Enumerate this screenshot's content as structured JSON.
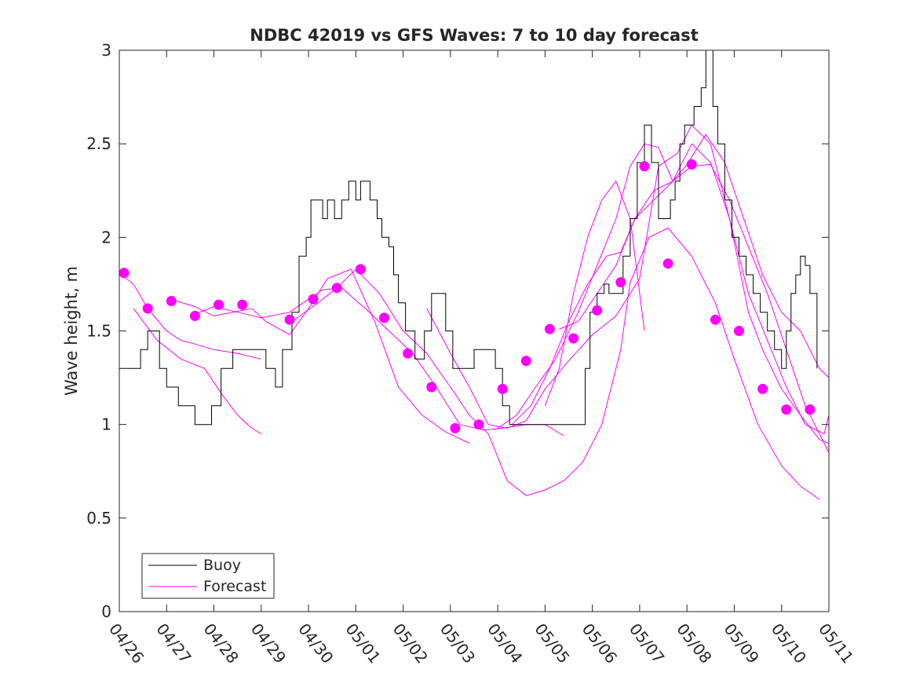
{
  "chart_data": {
    "type": "line",
    "title": "NDBC 42019 vs GFS Waves: 7 to 10 day forecast",
    "xlabel": "",
    "ylabel": "Wave height, m",
    "xlim": [
      0,
      15
    ],
    "ylim": [
      0,
      3
    ],
    "x_ticks": [
      0,
      1,
      2,
      3,
      4,
      5,
      6,
      7,
      8,
      9,
      10,
      11,
      12,
      13,
      14,
      15
    ],
    "x_tick_labels": [
      "04/26",
      "04/27",
      "04/28",
      "04/29",
      "04/30",
      "05/01",
      "05/02",
      "05/03",
      "05/04",
      "05/05",
      "05/06",
      "05/07",
      "05/08",
      "05/09",
      "05/10",
      "05/11"
    ],
    "y_ticks": [
      0,
      0.5,
      1,
      1.5,
      2,
      2.5,
      3
    ],
    "y_tick_labels": [
      "0",
      "0.5",
      "1",
      "1.5",
      "2",
      "2.5",
      "3"
    ],
    "grid": false,
    "legend": {
      "placement": "bottom-left",
      "entries": [
        "Buoy",
        "Forecast"
      ]
    },
    "colors": {
      "buoy": "#000000",
      "forecast": "#ff00ff",
      "axes": "#262626"
    },
    "buoy": {
      "name": "Buoy",
      "x": [
        0.0,
        0.25,
        0.45,
        0.6,
        0.85,
        1.0,
        1.1,
        1.25,
        1.45,
        1.6,
        1.75,
        1.95,
        2.15,
        2.3,
        2.4,
        2.55,
        2.75,
        2.95,
        3.1,
        3.3,
        3.45,
        3.65,
        3.8,
        3.95,
        4.05,
        4.15,
        4.3,
        4.4,
        4.55,
        4.7,
        4.85,
        5.0,
        5.1,
        5.3,
        5.45,
        5.55,
        5.7,
        5.8,
        5.9,
        6.05,
        6.25,
        6.45,
        6.6,
        6.75,
        6.9,
        7.05,
        7.2,
        7.35,
        7.5,
        7.65,
        7.75,
        7.95,
        8.1,
        8.25,
        8.45,
        8.65,
        8.8,
        8.95,
        9.15,
        9.3,
        9.45,
        9.6,
        9.75,
        9.85,
        9.95,
        10.1,
        10.25,
        10.35,
        10.5,
        10.65,
        10.8,
        10.95,
        11.1,
        11.25,
        11.4,
        11.55,
        11.65,
        11.75,
        11.85,
        11.95,
        12.05,
        12.15,
        12.3,
        12.4,
        12.55,
        12.65,
        12.8,
        12.95,
        13.1,
        13.25,
        13.4,
        13.55,
        13.7,
        13.85,
        14.0,
        14.1,
        14.2,
        14.3,
        14.4,
        14.5,
        14.6,
        14.75
      ],
      "y": [
        1.3,
        1.3,
        1.4,
        1.5,
        1.3,
        1.2,
        1.2,
        1.1,
        1.1,
        1.0,
        1.0,
        1.1,
        1.3,
        1.3,
        1.4,
        1.4,
        1.4,
        1.4,
        1.3,
        1.2,
        1.4,
        1.6,
        1.9,
        2.0,
        2.2,
        2.2,
        2.1,
        2.2,
        2.1,
        2.2,
        2.3,
        2.2,
        2.3,
        2.2,
        2.1,
        2.0,
        1.95,
        1.8,
        1.65,
        1.5,
        1.35,
        1.5,
        1.7,
        1.7,
        1.5,
        1.3,
        1.3,
        1.3,
        1.4,
        1.4,
        1.4,
        1.3,
        1.1,
        1.0,
        1.0,
        1.0,
        1.0,
        1.0,
        1.0,
        1.0,
        1.0,
        1.0,
        1.0,
        1.3,
        1.6,
        1.7,
        1.75,
        1.7,
        1.7,
        1.9,
        2.1,
        2.4,
        2.6,
        2.4,
        2.1,
        2.1,
        2.2,
        2.3,
        2.5,
        2.6,
        2.6,
        2.7,
        2.8,
        3.0,
        2.7,
        2.5,
        2.2,
        2.0,
        1.9,
        1.8,
        1.7,
        1.6,
        1.5,
        1.4,
        1.3,
        1.5,
        1.7,
        1.8,
        1.9,
        1.85,
        1.7,
        1.3
      ]
    },
    "forecast_series": [
      {
        "x": [
          0.0,
          0.3,
          0.6,
          1.0,
          1.3,
          1.6,
          2.0,
          2.5,
          3.0
        ],
        "y": [
          1.81,
          1.75,
          1.62,
          1.5,
          1.45,
          1.43,
          1.4,
          1.38,
          1.35
        ]
      },
      {
        "x": [
          0.3,
          0.8,
          1.3,
          1.8,
          2.2,
          2.5,
          2.8,
          3.0
        ],
        "y": [
          1.62,
          1.45,
          1.35,
          1.3,
          1.15,
          1.05,
          0.98,
          0.95
        ]
      },
      {
        "x": [
          1.2,
          1.6,
          2.0,
          2.4,
          2.8,
          3.1,
          3.6,
          4.0,
          4.4,
          4.9,
          5.4,
          5.9,
          6.4,
          6.9,
          7.4
        ],
        "y": [
          1.66,
          1.63,
          1.58,
          1.6,
          1.62,
          1.55,
          1.48,
          1.62,
          1.78,
          1.83,
          1.55,
          1.2,
          1.05,
          0.96,
          0.9
        ]
      },
      {
        "x": [
          1.5,
          2.0,
          2.5,
          3.0,
          3.6,
          4.0,
          4.3,
          4.7,
          5.2,
          5.7,
          6.2,
          6.7,
          7.2,
          7.7,
          8.1,
          8.6,
          9.0,
          9.4
        ],
        "y": [
          1.58,
          1.63,
          1.6,
          1.57,
          1.6,
          1.67,
          1.72,
          1.73,
          1.62,
          1.5,
          1.38,
          1.2,
          1.0,
          0.97,
          0.98,
          1.0,
          1.0,
          0.94
        ]
      },
      {
        "x": [
          3.7,
          4.2,
          4.6,
          5.0,
          5.5,
          6.0,
          6.5,
          7.0,
          7.4,
          7.8,
          8.2,
          8.6,
          9.0,
          9.4,
          9.8,
          10.2,
          10.6,
          10.8,
          11.2,
          11.6,
          12.1,
          12.6,
          13.0,
          13.5,
          14.0,
          14.4,
          14.8
        ],
        "y": [
          1.56,
          1.65,
          1.73,
          1.83,
          1.7,
          1.5,
          1.38,
          1.2,
          1.05,
          0.95,
          0.7,
          0.62,
          0.65,
          0.7,
          0.8,
          1.0,
          1.4,
          1.76,
          2.0,
          2.05,
          1.9,
          1.65,
          1.35,
          1.0,
          0.78,
          0.67,
          0.6
        ]
      },
      {
        "x": [
          6.5,
          7.0,
          7.4,
          7.8,
          8.2,
          8.6,
          9.0,
          9.5,
          10.0,
          10.5,
          11.0,
          11.4,
          11.8,
          12.1,
          12.5,
          12.9,
          13.3,
          13.6,
          14.0,
          14.4,
          14.8,
          15.0
        ],
        "y": [
          1.62,
          1.38,
          1.2,
          1.0,
          0.98,
          1.02,
          1.19,
          1.34,
          1.48,
          1.58,
          1.78,
          2.38,
          2.45,
          2.6,
          2.5,
          2.1,
          1.6,
          1.4,
          1.19,
          1.05,
          0.92,
          0.9
        ]
      },
      {
        "x": [
          8.0,
          8.4,
          8.8,
          9.2,
          9.7,
          10.1,
          10.5,
          10.8,
          11.1,
          11.4,
          11.7,
          12.0,
          12.4,
          12.8,
          13.2,
          13.6,
          14.0,
          14.4,
          14.8,
          15.0
        ],
        "y": [
          0.98,
          1.05,
          1.2,
          1.34,
          1.6,
          1.85,
          2.1,
          2.38,
          2.5,
          2.48,
          2.3,
          2.39,
          2.55,
          2.4,
          2.1,
          1.8,
          1.6,
          1.5,
          1.3,
          1.25
        ]
      },
      {
        "x": [
          9.3,
          9.7,
          10.1,
          10.5,
          10.9,
          11.3,
          11.7,
          12.1,
          12.5,
          12.9,
          13.3,
          13.7,
          14.1,
          14.5,
          14.9,
          15.0
        ],
        "y": [
          1.51,
          1.55,
          1.7,
          1.85,
          2.1,
          2.25,
          2.3,
          2.38,
          2.39,
          2.2,
          1.95,
          1.7,
          1.4,
          1.1,
          0.9,
          0.85
        ]
      },
      {
        "x": [
          8.3,
          8.7,
          9.1,
          9.5,
          9.9,
          10.3,
          10.6,
          10.9,
          11.3,
          11.7,
          12.1,
          12.5,
          12.9,
          13.3,
          13.7,
          14.1,
          14.5,
          14.9,
          15.0
        ],
        "y": [
          1.0,
          1.1,
          1.3,
          1.55,
          1.75,
          1.9,
          1.92,
          2.1,
          2.2,
          2.3,
          2.5,
          2.4,
          2.1,
          1.7,
          1.45,
          1.2,
          1.0,
          0.95,
          1.05
        ]
      },
      {
        "x": [
          9.0,
          9.3,
          9.6,
          9.9,
          10.2,
          10.5,
          10.8,
          11.1
        ],
        "y": [
          1.1,
          1.3,
          1.7,
          2.0,
          2.2,
          2.3,
          2.1,
          1.5
        ]
      }
    ],
    "forecast_points": {
      "name": "Forecast",
      "x": [
        0.1,
        0.6,
        1.1,
        1.6,
        2.1,
        2.6,
        3.6,
        4.1,
        4.6,
        5.1,
        5.6,
        6.1,
        6.6,
        7.1,
        7.6,
        8.1,
        8.6,
        9.1,
        9.6,
        10.1,
        10.6,
        11.1,
        11.6,
        12.1,
        12.6,
        13.1,
        13.6,
        14.1,
        14.6
      ],
      "y": [
        1.81,
        1.62,
        1.66,
        1.58,
        1.64,
        1.64,
        1.56,
        1.67,
        1.73,
        1.83,
        1.57,
        1.38,
        1.2,
        0.98,
        1.0,
        1.19,
        1.34,
        1.51,
        1.46,
        1.61,
        1.76,
        2.38,
        1.86,
        2.39,
        1.56,
        1.5,
        1.19,
        1.08,
        1.08
      ]
    }
  }
}
